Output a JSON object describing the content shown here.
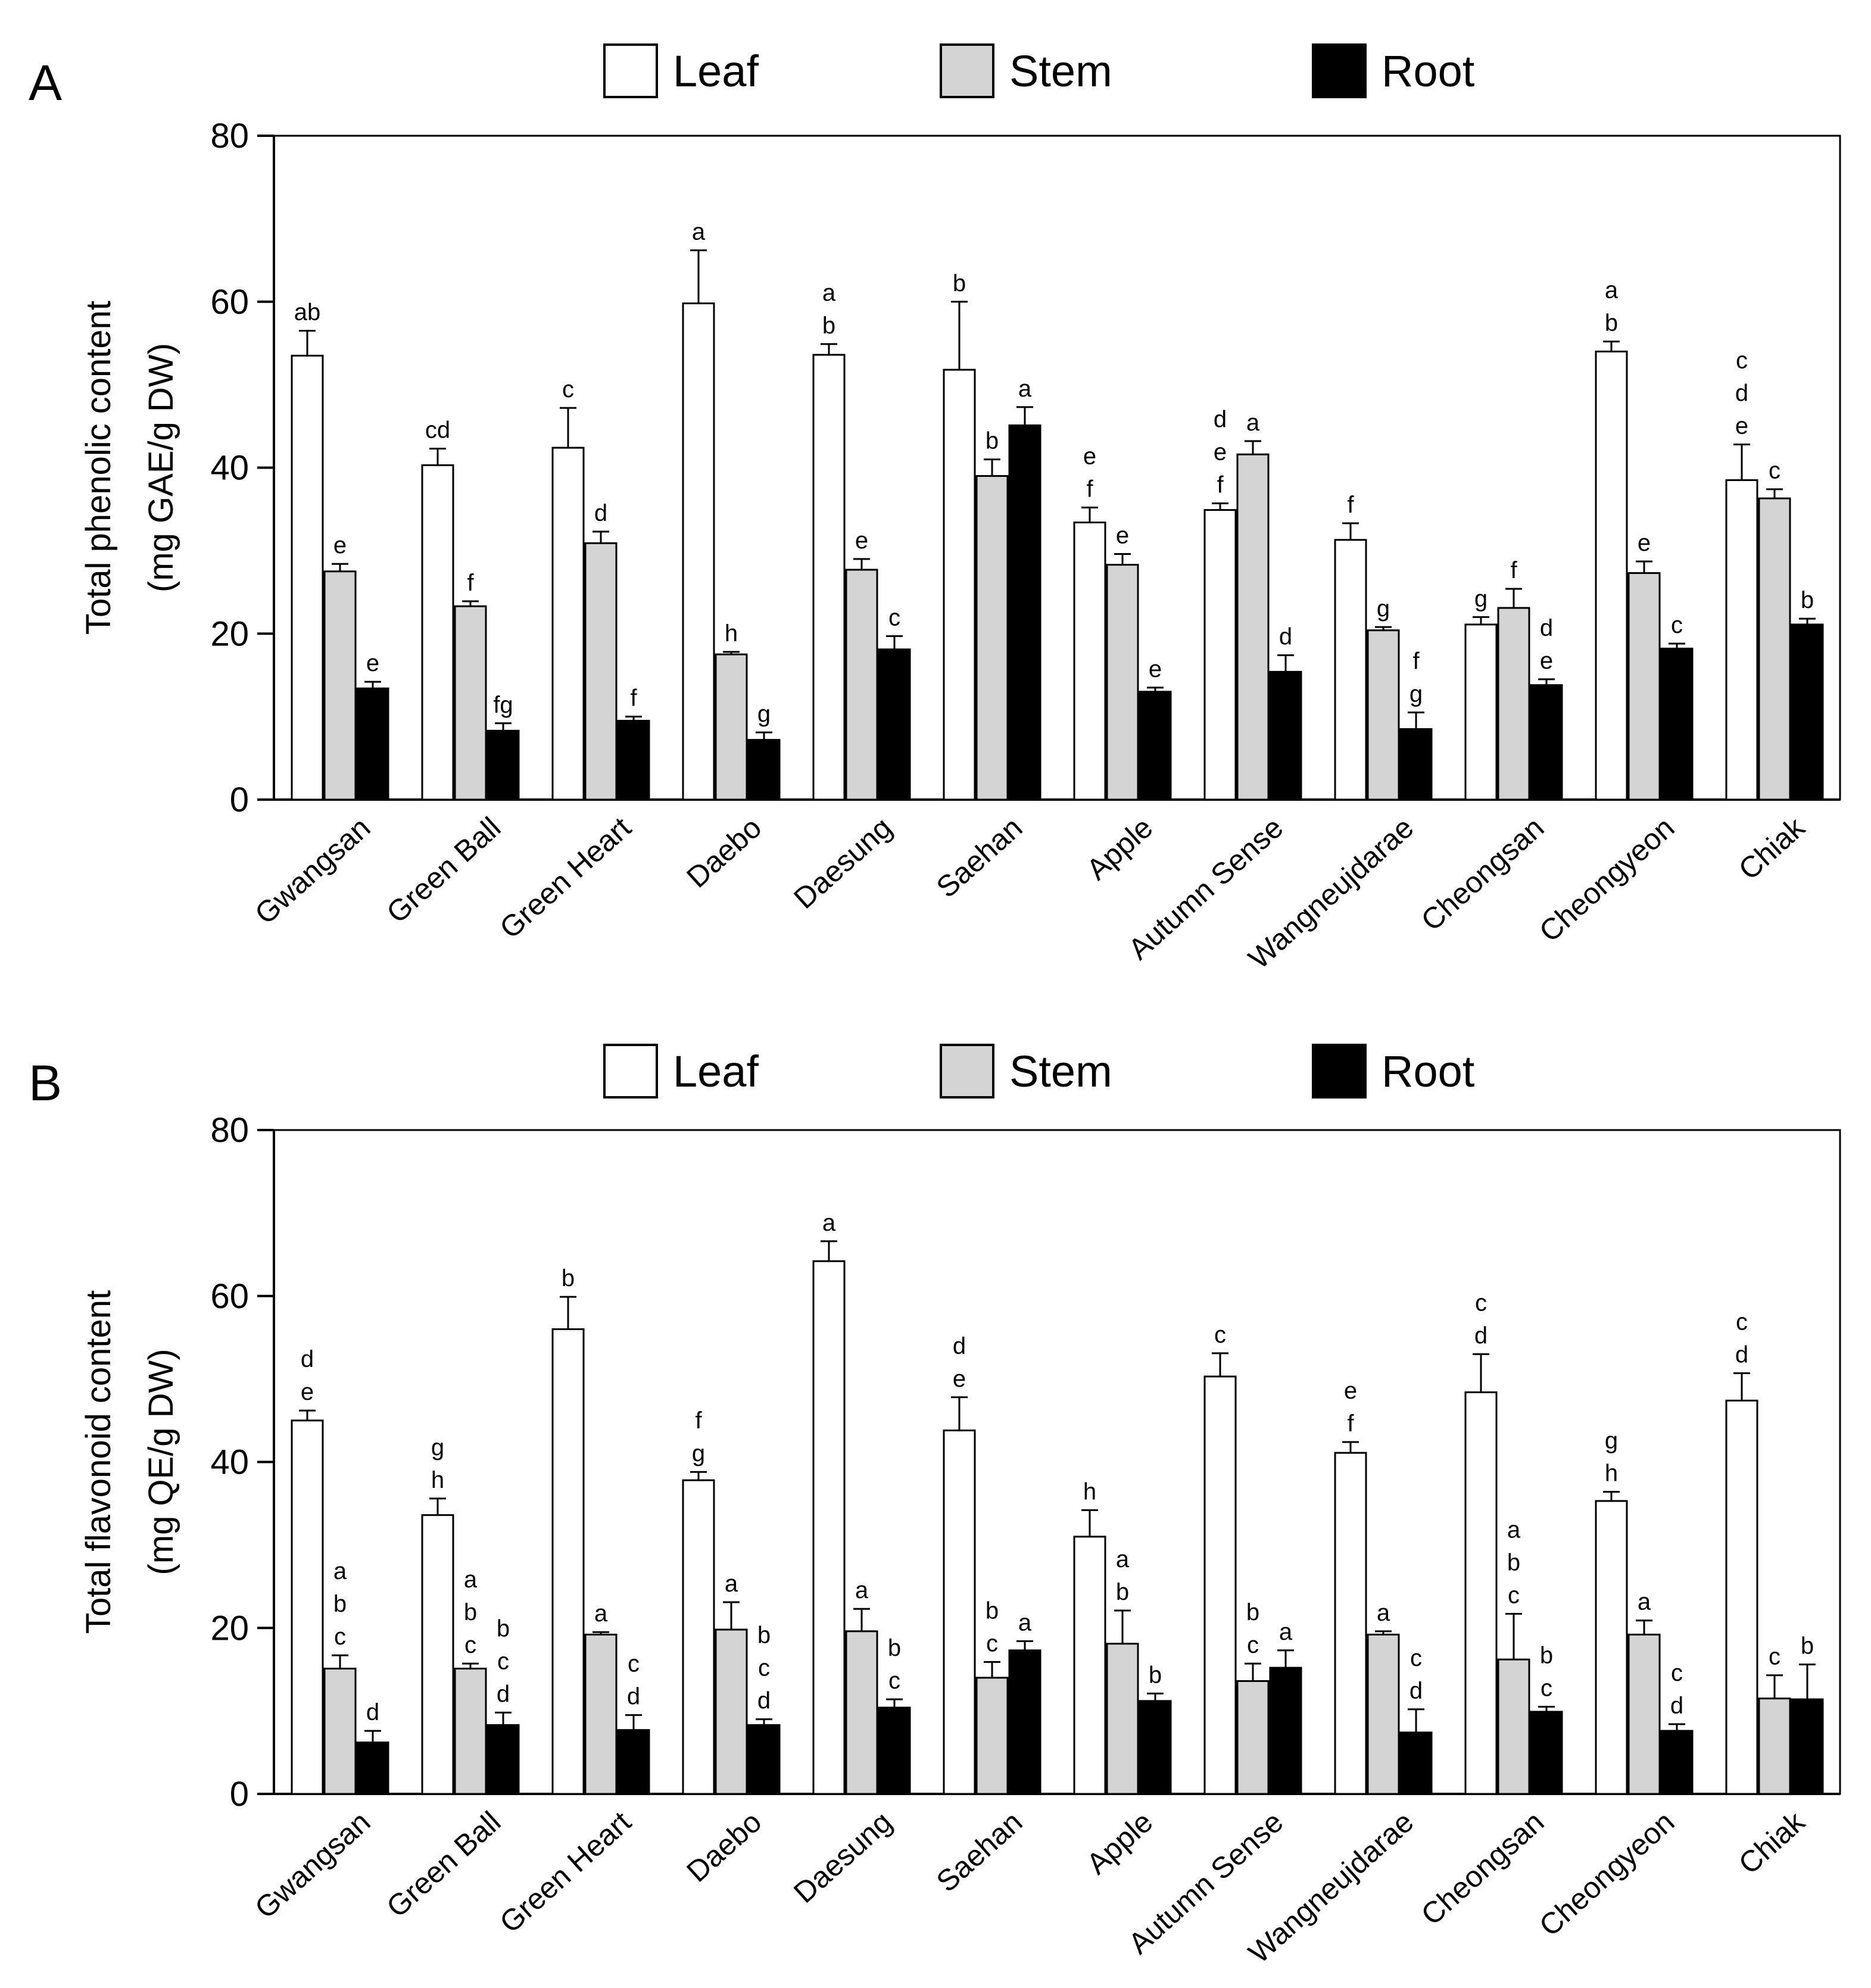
{
  "series_colors": {
    "Leaf": "#ffffff",
    "Stem": "#d4d4d4",
    "Root": "#000000"
  },
  "chart_data": [
    {
      "type": "bar",
      "panel": "A",
      "legend": [
        "Leaf",
        "Stem",
        "Root"
      ],
      "ylabel_line1": "Total phenolic content",
      "ylabel_line2": "(mg GAE/g DW)",
      "ylim": [
        0,
        80
      ],
      "yticks": [
        0,
        20,
        40,
        60,
        80
      ],
      "categories": [
        "Gwangsan",
        "Green Ball",
        "Green Heart",
        "Daebo",
        "Daesung",
        "Saehan",
        "Apple",
        "Autumn Sense",
        "Wangneujdarae",
        "Cheongsan",
        "Cheongyeon",
        "Chiak"
      ],
      "series": [
        {
          "name": "Leaf",
          "values": [
            53.5,
            40.3,
            42.4,
            59.8,
            53.6,
            51.8,
            33.4,
            34.9,
            31.3,
            21.1,
            54.0,
            38.5
          ],
          "errors": [
            3.0,
            2.0,
            4.8,
            6.4,
            1.3,
            8.2,
            1.8,
            0.8,
            2.0,
            0.9,
            1.2,
            4.3
          ],
          "letters": [
            [
              "ab"
            ],
            [
              "cd"
            ],
            [
              "c"
            ],
            [
              "a"
            ],
            [
              "a",
              "b"
            ],
            [
              "b"
            ],
            [
              "e",
              "f"
            ],
            [
              "d",
              "e",
              "f"
            ],
            [
              "f"
            ],
            [
              "g"
            ],
            [
              "a",
              "b"
            ],
            [
              "c",
              "d",
              "e"
            ]
          ]
        },
        {
          "name": "Stem",
          "values": [
            27.5,
            23.3,
            30.9,
            17.5,
            27.7,
            39.0,
            28.3,
            41.6,
            20.4,
            23.1,
            27.3,
            36.3
          ],
          "errors": [
            0.9,
            0.6,
            1.4,
            0.3,
            1.3,
            2.0,
            1.3,
            1.6,
            0.4,
            2.3,
            1.4,
            1.1
          ],
          "letters": [
            [
              "e"
            ],
            [
              "f"
            ],
            [
              "d"
            ],
            [
              "h"
            ],
            [
              "e"
            ],
            [
              "b"
            ],
            [
              "e"
            ],
            [
              "a"
            ],
            [
              "g"
            ],
            [
              "f"
            ],
            [
              "e"
            ],
            [
              "c"
            ]
          ]
        },
        {
          "name": "Root",
          "values": [
            13.4,
            8.3,
            9.5,
            7.2,
            18.1,
            45.1,
            13.0,
            15.4,
            8.5,
            13.8,
            18.2,
            21.1
          ],
          "errors": [
            0.8,
            0.9,
            0.5,
            0.9,
            1.6,
            2.2,
            0.5,
            2.0,
            2.0,
            0.7,
            0.6,
            0.7
          ],
          "letters": [
            [
              "e"
            ],
            [
              "fg"
            ],
            [
              "f"
            ],
            [
              "g"
            ],
            [
              "c"
            ],
            [
              "a"
            ],
            [
              "e"
            ],
            [
              "d"
            ],
            [
              "f",
              "g"
            ],
            [
              "d",
              "e"
            ],
            [
              "c"
            ],
            [
              "b"
            ]
          ]
        }
      ]
    },
    {
      "type": "bar",
      "panel": "B",
      "legend": [
        "Leaf",
        "Stem",
        "Root"
      ],
      "ylabel_line1": "Total flavonoid content",
      "ylabel_line2": "(mg QE/g DW)",
      "ylim": [
        0,
        80
      ],
      "yticks": [
        0,
        20,
        40,
        60,
        80
      ],
      "categories": [
        "Gwangsan",
        "Green Ball",
        "Green Heart",
        "Daebo",
        "Daesung",
        "Saehan",
        "Apple",
        "Autumn Sense",
        "Wangneujdarae",
        "Cheongsan",
        "Cheongyeon",
        "Chiak"
      ],
      "series": [
        {
          "name": "Leaf",
          "values": [
            45.0,
            33.6,
            56.0,
            37.8,
            64.2,
            43.8,
            31.0,
            50.3,
            41.1,
            48.4,
            35.3,
            47.4
          ],
          "errors": [
            1.2,
            2.0,
            3.9,
            1.0,
            2.4,
            4.0,
            3.2,
            2.8,
            1.3,
            4.6,
            1.1,
            3.3
          ],
          "letters": [
            [
              "d",
              "e"
            ],
            [
              "g",
              "h"
            ],
            [
              "b"
            ],
            [
              "f",
              "g"
            ],
            [
              "a"
            ],
            [
              "d",
              "e"
            ],
            [
              "h"
            ],
            [
              "c"
            ],
            [
              "e",
              "f"
            ],
            [
              "c",
              "d"
            ],
            [
              "g",
              "h"
            ],
            [
              "c",
              "d"
            ]
          ]
        },
        {
          "name": "Stem",
          "values": [
            15.1,
            15.1,
            19.2,
            19.8,
            19.6,
            14.0,
            18.1,
            13.6,
            19.2,
            16.2,
            19.2,
            11.5
          ],
          "errors": [
            1.6,
            0.6,
            0.3,
            3.3,
            2.7,
            1.9,
            4.0,
            2.1,
            0.4,
            5.5,
            1.7,
            2.8
          ],
          "letters": [
            [
              "a",
              "b",
              "c"
            ],
            [
              "a",
              "b",
              "c"
            ],
            [
              "a"
            ],
            [
              "a"
            ],
            [
              "a"
            ],
            [
              "b",
              "c"
            ],
            [
              "a",
              "b"
            ],
            [
              "b",
              "c"
            ],
            [
              "a"
            ],
            [
              "a",
              "b",
              "c"
            ],
            [
              "a"
            ],
            [
              "c"
            ]
          ]
        },
        {
          "name": "Root",
          "values": [
            6.2,
            8.3,
            7.7,
            8.3,
            10.4,
            17.3,
            11.2,
            15.2,
            7.4,
            9.9,
            7.6,
            11.4
          ],
          "errors": [
            1.4,
            1.5,
            1.8,
            0.7,
            1.0,
            1.1,
            0.9,
            2.1,
            2.8,
            0.6,
            0.8,
            4.2
          ],
          "letters": [
            [
              "d"
            ],
            [
              "b",
              "c",
              "d"
            ],
            [
              "c",
              "d"
            ],
            [
              "b",
              "c",
              "d"
            ],
            [
              "b",
              "c"
            ],
            [
              "a"
            ],
            [
              "b"
            ],
            [
              "a"
            ],
            [
              "c",
              "d"
            ],
            [
              "b",
              "c"
            ],
            [
              "c",
              "d"
            ],
            [
              "b"
            ]
          ]
        }
      ]
    }
  ]
}
